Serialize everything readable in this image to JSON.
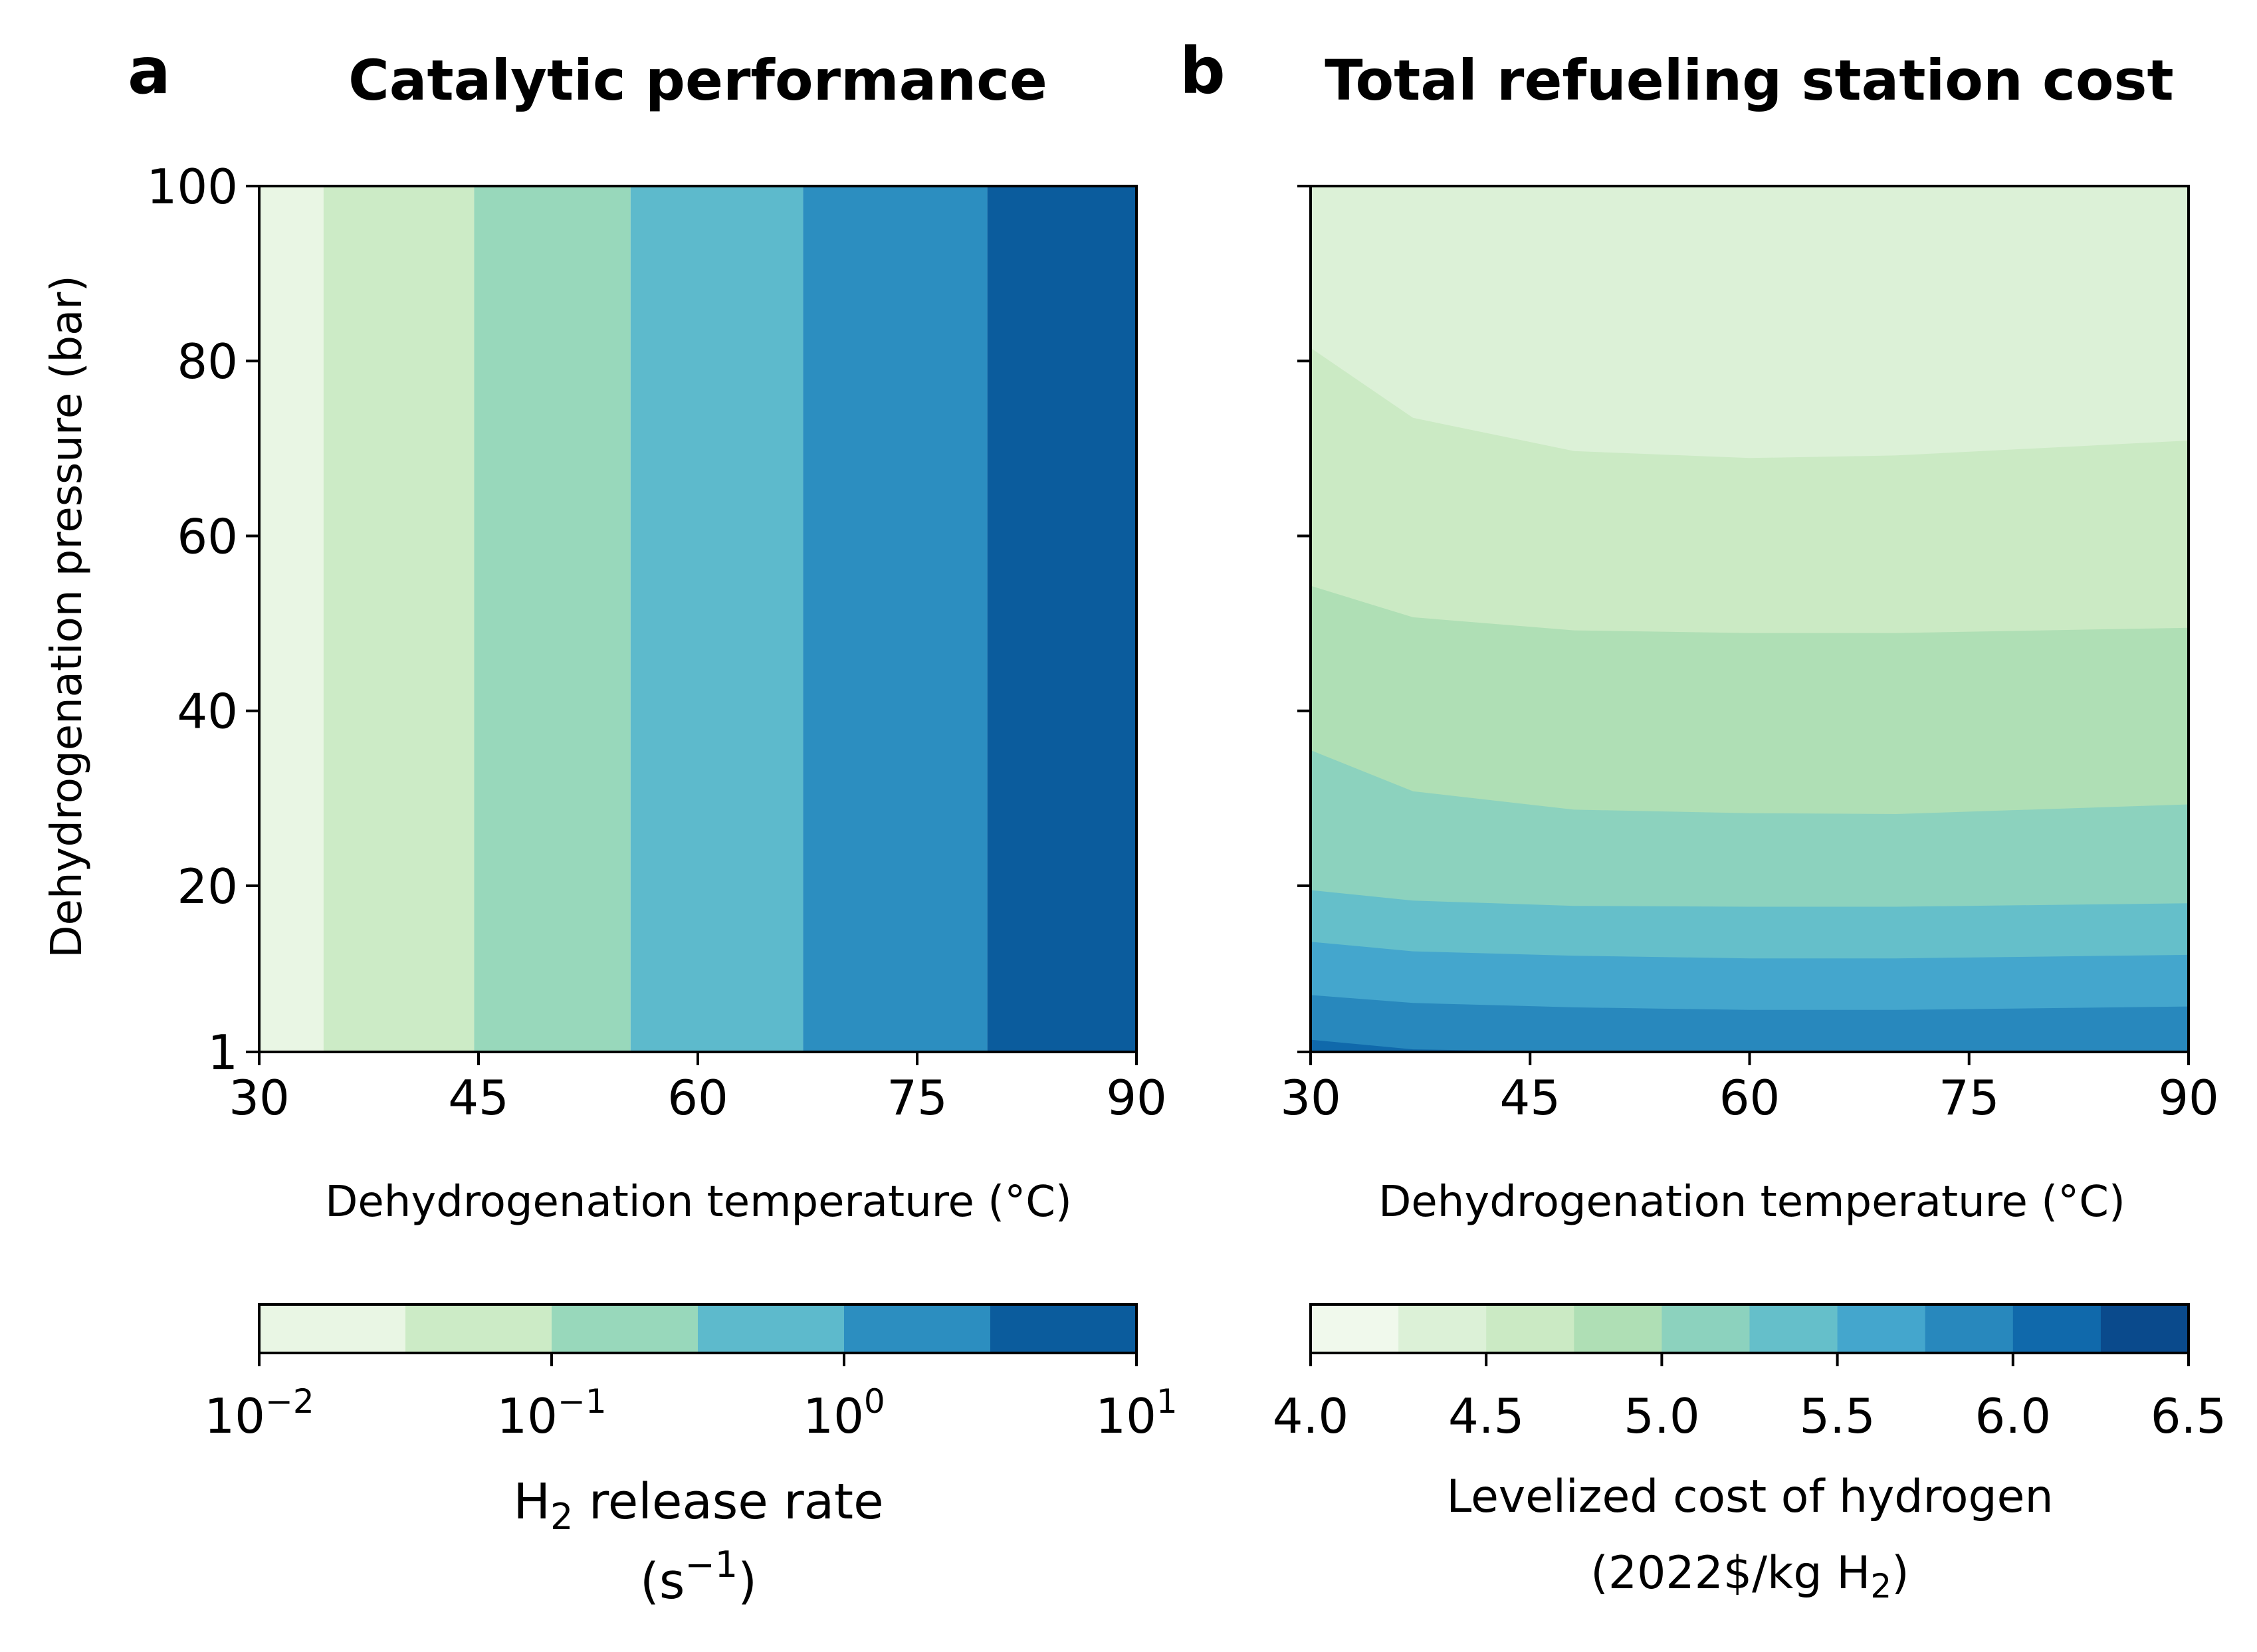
{
  "chart_data": [
    {
      "type": "heatmap",
      "panel_label": "a",
      "title": "Catalytic performance",
      "xlabel": "Dehydrogenation temperature (°C)",
      "ylabel": "Dehydrogenation pressure (bar)",
      "xlim": [
        30,
        90
      ],
      "ylim": [
        1,
        100
      ],
      "x_ticks": [
        30,
        45,
        60,
        75,
        90
      ],
      "y_ticks": [
        1,
        20,
        40,
        60,
        80,
        100
      ],
      "legend": "colorbar-bottom",
      "colorbar": {
        "label_main": "H",
        "label_sub": "2",
        "label_rest": " release rate",
        "label_line2_open": "(s",
        "label_line2_sup": "−1",
        "label_line2_close": ")",
        "scale": "log",
        "range": [
          0.01,
          10
        ],
        "ticks": [
          {
            "value": 0.01,
            "base": "10",
            "exp": "−2"
          },
          {
            "value": 0.1,
            "base": "10",
            "exp": "−1"
          },
          {
            "value": 1,
            "base": "10",
            "exp": "0"
          },
          {
            "value": 10,
            "base": "10",
            "exp": "1"
          }
        ],
        "levels": [
          0.01,
          0.0316,
          0.1,
          0.316,
          1,
          3.16,
          10
        ],
        "colors": [
          "#e9f6e4",
          "#ccebc6",
          "#98d8bb",
          "#5dbacc",
          "#2c8ec0",
          "#0b5c9d"
        ]
      },
      "bands": [
        {
          "x_from": 30,
          "x_to": 34.4,
          "level": 0
        },
        {
          "x_from": 34.4,
          "x_to": 44.7,
          "level": 1
        },
        {
          "x_from": 44.7,
          "x_to": 55.4,
          "level": 2
        },
        {
          "x_from": 55.4,
          "x_to": 67.2,
          "level": 3
        },
        {
          "x_from": 67.2,
          "x_to": 79.8,
          "level": 4
        },
        {
          "x_from": 79.8,
          "x_to": 90,
          "level": 5
        }
      ]
    },
    {
      "type": "heatmap",
      "panel_label": "b",
      "title": "Total refueling station cost",
      "xlabel": "Dehydrogenation temperature (°C)",
      "xlim": [
        30,
        90
      ],
      "ylim": [
        1,
        100
      ],
      "x_ticks": [
        30,
        45,
        60,
        75,
        90
      ],
      "y_ticks": [
        1,
        20,
        40,
        60,
        80,
        100
      ],
      "legend": "colorbar-bottom",
      "colorbar": {
        "label_line1": "Levelized cost of hydrogen",
        "label_line2_pre": "(2022$/kg H",
        "label_line2_sub": "2",
        "label_line2_post": ")",
        "range": [
          4.0,
          6.5
        ],
        "ticks": [
          "4.0",
          "4.5",
          "5.0",
          "5.5",
          "6.0",
          "6.5"
        ],
        "levels": [
          4.0,
          4.25,
          4.5,
          4.75,
          5.0,
          5.25,
          5.5,
          5.75,
          6.0,
          6.25,
          6.5
        ],
        "colors": [
          "#f0f9ec",
          "#dcf1d7",
          "#cbeac4",
          "#afdfb5",
          "#8cd2be",
          "#65bfca",
          "#44a6cd",
          "#2888bd",
          "#1069ab",
          "#0a4a8c"
        ]
      },
      "contour_x": [
        30,
        37,
        48,
        60,
        70,
        90
      ],
      "boundaries": [
        {
          "y": [
            81.5,
            73.5,
            69.7,
            68.9,
            69.2,
            70.9
          ],
          "upper_level": 1
        },
        {
          "y": [
            54.3,
            50.7,
            49.2,
            48.9,
            48.9,
            49.5
          ],
          "upper_level": 2
        },
        {
          "y": [
            35.5,
            30.8,
            28.7,
            28.3,
            28.2,
            29.3
          ],
          "upper_level": 3
        },
        {
          "y": [
            19.5,
            18.3,
            17.7,
            17.6,
            17.6,
            18.0
          ],
          "upper_level": 4
        },
        {
          "y": [
            13.6,
            12.5,
            12.0,
            11.7,
            11.7,
            12.1
          ],
          "upper_level": 5
        },
        {
          "y": [
            7.5,
            6.6,
            6.1,
            5.8,
            5.8,
            6.2
          ],
          "upper_level": 6
        },
        {
          "y": [
            2.4,
            1.3,
            1.0,
            1.0,
            1.0,
            1.0
          ],
          "upper_level": 7
        }
      ],
      "bottom_level": 8
    }
  ]
}
